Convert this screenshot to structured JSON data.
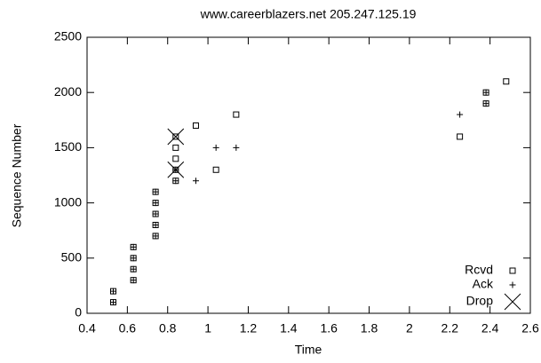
{
  "chart_data": {
    "type": "scatter",
    "title": "www.careerblazers.net 205.247.125.19",
    "x_label": "Time",
    "y_label": "Sequence Number",
    "xlim": [
      0.4,
      2.6
    ],
    "xticks": [
      0.4,
      0.6,
      0.8,
      1,
      1.2,
      1.4,
      1.6,
      1.8,
      2,
      2.2,
      2.4,
      2.6
    ],
    "ylim": [
      0,
      2500
    ],
    "yticks": [
      0,
      500,
      1000,
      1500,
      2000,
      2500
    ],
    "legend": "bottom-right",
    "series": [
      {
        "name": "Rcvd",
        "color": "#000000",
        "marker": "square",
        "x": [
          0.53,
          0.53,
          0.63,
          0.63,
          0.63,
          0.63,
          0.74,
          0.74,
          0.74,
          0.74,
          0.74,
          0.84,
          0.84,
          0.84,
          0.84,
          0.84,
          0.94,
          1.04,
          1.14,
          2.25,
          2.38,
          2.38,
          2.48
        ],
        "values": [
          100,
          200,
          300,
          400,
          500,
          600,
          700,
          800,
          900,
          1000,
          1100,
          1200,
          1300,
          1400,
          1500,
          1600,
          1700,
          1300,
          1800,
          1600,
          1900,
          2000,
          2100
        ]
      },
      {
        "name": "Ack",
        "color": "#000000",
        "marker": "plus",
        "x": [
          0.53,
          0.53,
          0.63,
          0.63,
          0.63,
          0.63,
          0.74,
          0.74,
          0.74,
          0.74,
          0.74,
          0.84,
          0.84,
          0.94,
          1.04,
          1.14,
          2.25,
          2.38,
          2.38
        ],
        "values": [
          100,
          200,
          300,
          400,
          500,
          600,
          700,
          800,
          900,
          1000,
          1100,
          1200,
          1300,
          1200,
          1500,
          1500,
          1800,
          1900,
          2000
        ]
      },
      {
        "name": "Drop",
        "color": "#000000",
        "marker": "x",
        "x": [
          0.84,
          0.84
        ],
        "values": [
          1300,
          1600
        ]
      }
    ]
  }
}
